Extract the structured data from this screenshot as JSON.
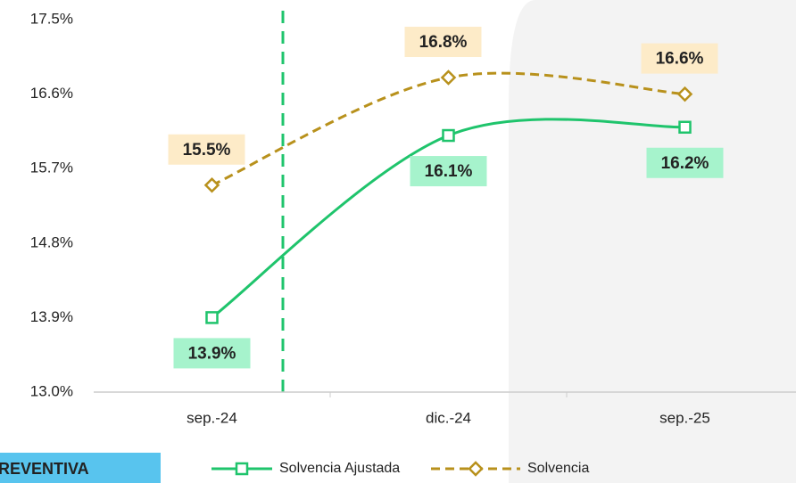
{
  "chart_data": {
    "type": "line",
    "categories": [
      "sep.-24",
      "dic.-24",
      "sep.-25"
    ],
    "series": [
      {
        "name": "Solvencia Ajustada",
        "color": "#1fc46c",
        "label_bg": "#a6f3cc",
        "dash": false,
        "marker": "square",
        "values": [
          13.9,
          16.1,
          16.2
        ],
        "value_labels": [
          "13.9%",
          "16.1%",
          "16.2%"
        ]
      },
      {
        "name": "Solvencia",
        "color": "#b8911c",
        "label_bg": "#fdebc8",
        "dash": true,
        "marker": "diamond",
        "values": [
          15.5,
          16.8,
          16.6
        ],
        "value_labels": [
          "15.5%",
          "16.8%",
          "16.6%"
        ]
      }
    ],
    "ylim": [
      13.0,
      17.5
    ],
    "yticks": [
      {
        "value": 13.0,
        "label": "13.0%"
      },
      {
        "value": 13.9,
        "label": "13.9%"
      },
      {
        "value": 14.8,
        "label": "14.8%"
      },
      {
        "value": 15.7,
        "label": "15.7%"
      },
      {
        "value": 16.6,
        "label": "16.6%"
      },
      {
        "value": 17.5,
        "label": "17.5%"
      }
    ],
    "grid": false
  },
  "banner": "REVENTIVA"
}
